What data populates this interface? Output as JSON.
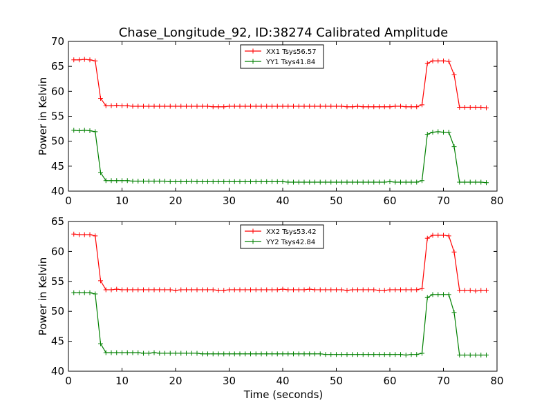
{
  "figure": {
    "title": "Chase_Longitude_92, ID:38274 Calibrated Amplitude",
    "xlabel": "Time (seconds)"
  },
  "colors": {
    "xx": "#ff0000",
    "yy": "#008000"
  },
  "chart_data": [
    {
      "type": "line",
      "title": "Chase_Longitude_92, ID:38274 Calibrated Amplitude",
      "xlabel": "",
      "ylabel": "Power in Kelvin",
      "xlim": [
        0,
        80
      ],
      "ylim": [
        40,
        70
      ],
      "xticks": [
        0,
        10,
        20,
        30,
        40,
        50,
        60,
        70,
        80
      ],
      "yticks": [
        40,
        45,
        50,
        55,
        60,
        65,
        70
      ],
      "grid": false,
      "legend_position": "top-center",
      "marker": "+",
      "x": [
        1,
        2,
        3,
        4,
        5,
        6,
        7,
        8,
        9,
        10,
        11,
        12,
        13,
        14,
        15,
        16,
        17,
        18,
        19,
        20,
        21,
        22,
        23,
        24,
        25,
        26,
        27,
        28,
        29,
        30,
        31,
        32,
        33,
        34,
        35,
        36,
        37,
        38,
        39,
        40,
        41,
        42,
        43,
        44,
        45,
        46,
        47,
        48,
        49,
        50,
        51,
        52,
        53,
        54,
        55,
        56,
        57,
        58,
        59,
        60,
        61,
        62,
        63,
        64,
        65,
        66,
        67,
        68,
        69,
        70,
        71,
        72,
        73,
        74,
        75,
        76,
        77,
        78
      ],
      "series": [
        {
          "name": "XX1 Tsys56.57",
          "color": "#ff0000",
          "values": [
            66.3,
            66.3,
            66.4,
            66.3,
            66.1,
            58.6,
            57.1,
            57.1,
            57.2,
            57.1,
            57.1,
            57.0,
            57.0,
            57.0,
            57.0,
            57.0,
            57.0,
            57.0,
            57.0,
            57.0,
            57.0,
            57.0,
            57.0,
            57.0,
            57.0,
            57.0,
            56.9,
            56.9,
            56.9,
            57.0,
            57.0,
            57.0,
            57.0,
            57.0,
            57.0,
            57.0,
            57.0,
            57.0,
            57.0,
            57.0,
            57.0,
            57.0,
            57.0,
            57.0,
            57.0,
            57.0,
            57.0,
            57.0,
            57.0,
            57.0,
            57.0,
            56.9,
            56.9,
            57.0,
            56.9,
            56.9,
            56.9,
            56.9,
            56.9,
            56.9,
            57.0,
            57.0,
            56.9,
            56.9,
            56.9,
            57.3,
            65.6,
            66.1,
            66.1,
            66.1,
            66.0,
            63.3,
            56.8,
            56.8,
            56.8,
            56.8,
            56.8,
            56.7
          ]
        },
        {
          "name": "YY1 Tsys41.84",
          "color": "#008000",
          "values": [
            52.2,
            52.1,
            52.2,
            52.1,
            51.9,
            43.7,
            42.1,
            42.1,
            42.1,
            42.1,
            42.1,
            42.0,
            42.0,
            42.0,
            42.0,
            42.0,
            42.0,
            42.0,
            41.9,
            41.9,
            41.9,
            41.9,
            42.0,
            41.9,
            41.9,
            41.9,
            41.9,
            41.9,
            41.9,
            41.9,
            41.9,
            41.9,
            41.9,
            41.9,
            41.9,
            41.9,
            41.9,
            41.9,
            41.9,
            41.9,
            41.8,
            41.8,
            41.8,
            41.8,
            41.8,
            41.8,
            41.8,
            41.8,
            41.8,
            41.8,
            41.8,
            41.8,
            41.8,
            41.8,
            41.8,
            41.8,
            41.8,
            41.8,
            41.8,
            41.9,
            41.8,
            41.8,
            41.8,
            41.8,
            41.8,
            42.1,
            51.4,
            51.8,
            51.9,
            51.8,
            51.8,
            48.9,
            41.8,
            41.8,
            41.8,
            41.8,
            41.8,
            41.7
          ]
        }
      ]
    },
    {
      "type": "line",
      "title": "",
      "xlabel": "Time (seconds)",
      "ylabel": "Power in Kelvin",
      "xlim": [
        0,
        80
      ],
      "ylim": [
        40,
        65
      ],
      "xticks": [
        0,
        10,
        20,
        30,
        40,
        50,
        60,
        70,
        80
      ],
      "yticks": [
        40,
        45,
        50,
        55,
        60,
        65
      ],
      "grid": false,
      "legend_position": "top-center",
      "marker": "+",
      "x": [
        1,
        2,
        3,
        4,
        5,
        6,
        7,
        8,
        9,
        10,
        11,
        12,
        13,
        14,
        15,
        16,
        17,
        18,
        19,
        20,
        21,
        22,
        23,
        24,
        25,
        26,
        27,
        28,
        29,
        30,
        31,
        32,
        33,
        34,
        35,
        36,
        37,
        38,
        39,
        40,
        41,
        42,
        43,
        44,
        45,
        46,
        47,
        48,
        49,
        50,
        51,
        52,
        53,
        54,
        55,
        56,
        57,
        58,
        59,
        60,
        61,
        62,
        63,
        64,
        65,
        66,
        67,
        68,
        69,
        70,
        71,
        72,
        73,
        74,
        75,
        76,
        77,
        78
      ],
      "series": [
        {
          "name": "XX2 Tsys53.42",
          "color": "#ff0000",
          "values": [
            62.9,
            62.8,
            62.8,
            62.8,
            62.6,
            55.1,
            53.6,
            53.6,
            53.7,
            53.6,
            53.6,
            53.6,
            53.6,
            53.6,
            53.6,
            53.6,
            53.6,
            53.6,
            53.6,
            53.5,
            53.6,
            53.6,
            53.6,
            53.6,
            53.6,
            53.6,
            53.6,
            53.5,
            53.5,
            53.6,
            53.6,
            53.6,
            53.6,
            53.6,
            53.6,
            53.6,
            53.6,
            53.6,
            53.6,
            53.7,
            53.6,
            53.6,
            53.6,
            53.6,
            53.7,
            53.6,
            53.6,
            53.6,
            53.6,
            53.6,
            53.6,
            53.5,
            53.6,
            53.6,
            53.6,
            53.6,
            53.6,
            53.5,
            53.5,
            53.6,
            53.6,
            53.6,
            53.6,
            53.6,
            53.6,
            53.8,
            62.2,
            62.7,
            62.7,
            62.7,
            62.6,
            59.9,
            53.5,
            53.5,
            53.5,
            53.4,
            53.5,
            53.5
          ]
        },
        {
          "name": "YY2 Tsys42.84",
          "color": "#008000",
          "values": [
            53.1,
            53.1,
            53.1,
            53.1,
            52.9,
            44.6,
            43.1,
            43.1,
            43.1,
            43.1,
            43.1,
            43.1,
            43.1,
            43.0,
            43.0,
            43.1,
            43.0,
            43.0,
            43.0,
            43.0,
            43.0,
            43.0,
            43.0,
            43.0,
            42.9,
            42.9,
            42.9,
            42.9,
            42.9,
            42.9,
            42.9,
            42.9,
            42.9,
            42.9,
            42.9,
            42.9,
            42.9,
            42.9,
            42.9,
            42.9,
            42.9,
            42.9,
            42.9,
            42.9,
            42.9,
            42.9,
            42.9,
            42.8,
            42.8,
            42.8,
            42.8,
            42.8,
            42.8,
            42.8,
            42.8,
            42.8,
            42.8,
            42.8,
            42.8,
            42.8,
            42.8,
            42.8,
            42.7,
            42.8,
            42.8,
            43.0,
            52.3,
            52.8,
            52.8,
            52.8,
            52.8,
            49.8,
            42.7,
            42.7,
            42.7,
            42.7,
            42.7,
            42.7
          ]
        }
      ]
    }
  ]
}
